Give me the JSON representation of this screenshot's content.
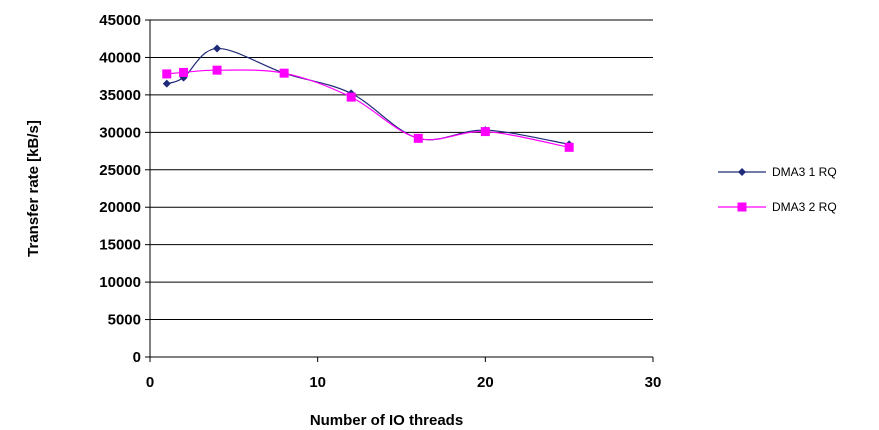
{
  "chart_data": {
    "type": "line",
    "title": "",
    "xlabel": "Number of IO threads",
    "ylabel": "Transfer rate [kB/s]",
    "xlim": [
      0,
      30
    ],
    "ylim": [
      0,
      45000
    ],
    "xticks": [
      0,
      10,
      20,
      30
    ],
    "yticks": [
      0,
      5000,
      10000,
      15000,
      20000,
      25000,
      30000,
      35000,
      40000,
      45000
    ],
    "grid": "horizontal",
    "legend_position": "right",
    "series": [
      {
        "name": "DMA3 1 RQ",
        "color": "#1f2a78",
        "marker": "diamond",
        "x": [
          1,
          2,
          4,
          8,
          12,
          16,
          20,
          25
        ],
        "y": [
          36500,
          37300,
          41200,
          37900,
          35200,
          29200,
          30300,
          28400
        ]
      },
      {
        "name": "DMA3 2 RQ",
        "color": "#ff00ff",
        "marker": "square",
        "x": [
          1,
          2,
          4,
          8,
          12,
          16,
          20,
          25
        ],
        "y": [
          37800,
          38000,
          38300,
          37900,
          34700,
          29200,
          30100,
          28000
        ]
      }
    ]
  }
}
